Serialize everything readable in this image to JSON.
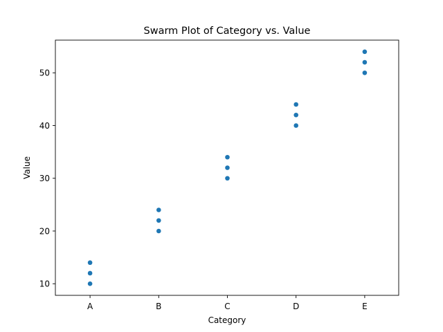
{
  "chart_data": {
    "type": "scatter",
    "subtype": "swarm",
    "title": "Swarm Plot of Category vs. Value",
    "xlabel": "Category",
    "ylabel": "Value",
    "categories": [
      "A",
      "B",
      "C",
      "D",
      "E"
    ],
    "points": [
      {
        "category": "A",
        "value": 10
      },
      {
        "category": "A",
        "value": 12
      },
      {
        "category": "A",
        "value": 14
      },
      {
        "category": "B",
        "value": 20
      },
      {
        "category": "B",
        "value": 22
      },
      {
        "category": "B",
        "value": 24
      },
      {
        "category": "C",
        "value": 30
      },
      {
        "category": "C",
        "value": 32
      },
      {
        "category": "C",
        "value": 34
      },
      {
        "category": "D",
        "value": 40
      },
      {
        "category": "D",
        "value": 42
      },
      {
        "category": "D",
        "value": 44
      },
      {
        "category": "E",
        "value": 50
      },
      {
        "category": "E",
        "value": 52
      },
      {
        "category": "E",
        "value": 54
      }
    ],
    "yticks": [
      10,
      20,
      30,
      40,
      50
    ],
    "ylim": [
      7.8,
      56.2
    ],
    "grid": false,
    "legend": "none",
    "point_color": "#1f77b4"
  }
}
